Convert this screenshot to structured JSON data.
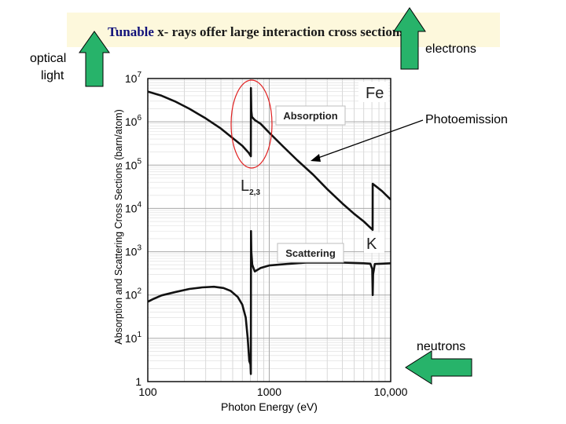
{
  "slide": {
    "title_part1": "Tunable",
    "title_part2": " x- rays offer large interaction cross sections",
    "optical_light_1": "optical",
    "optical_light_2": "light",
    "electrons": "electrons",
    "photoemission": "Photoemission",
    "neutrons": "neutrons",
    "arrow_color": "#27b36a",
    "ellipse_color": "#e02020"
  },
  "chart_data": {
    "type": "line",
    "title": "",
    "xlabel": "Photon Energy (eV)",
    "ylabel": "Absorption and Scattering Cross Sections (barn/atom)",
    "xscale": "log",
    "yscale": "log",
    "xlim": [
      100,
      10000
    ],
    "ylim": [
      1,
      10000000
    ],
    "x_tick_labels": [
      "100",
      "1000",
      "10,000"
    ],
    "y_tick_labels": [
      {
        "base": "1",
        "exp": ""
      },
      {
        "base": "10",
        "exp": "1"
      },
      {
        "base": "10",
        "exp": "2"
      },
      {
        "base": "10",
        "exp": "3"
      },
      {
        "base": "10",
        "exp": "4"
      },
      {
        "base": "10",
        "exp": "5"
      },
      {
        "base": "10",
        "exp": "6"
      },
      {
        "base": "10",
        "exp": "7"
      }
    ],
    "element": "Fe",
    "edge_labels": {
      "L": "L",
      "L_sub": "2,3",
      "K": "K"
    },
    "series": [
      {
        "name": "Absorption",
        "x": [
          100,
          130,
          170,
          220,
          300,
          400,
          500,
          600,
          680,
          706,
          707,
          712,
          720,
          760,
          850,
          1000,
          1300,
          1700,
          2300,
          3000,
          4000,
          5000,
          6000,
          7100,
          7112,
          7500,
          8500,
          10000
        ],
        "y": [
          5000000,
          4000000,
          2900000,
          2000000,
          1200000,
          700000,
          420000,
          280000,
          190000,
          160000,
          6000000,
          1800000,
          1300000,
          1100000,
          900000,
          560000,
          270000,
          130000,
          60000,
          28000,
          13000,
          7500,
          5000,
          3200,
          37000,
          33000,
          25000,
          16000
        ]
      },
      {
        "name": "Scattering",
        "x": [
          100,
          110,
          130,
          170,
          220,
          280,
          350,
          420,
          480,
          550,
          600,
          640,
          665,
          685,
          700,
          706,
          708,
          712,
          725,
          760,
          850,
          1000,
          1400,
          2000,
          3000,
          4000,
          5000,
          6000,
          6800,
          7050,
          7112,
          7160,
          7400,
          8500,
          10000
        ],
        "y": [
          70,
          80,
          98,
          118,
          138,
          150,
          155,
          145,
          125,
          90,
          60,
          30,
          10,
          3,
          2.5,
          1.5,
          3000,
          1000,
          500,
          350,
          420,
          480,
          520,
          560,
          560,
          560,
          550,
          540,
          530,
          400,
          100,
          300,
          520,
          530,
          540
        ]
      }
    ]
  }
}
